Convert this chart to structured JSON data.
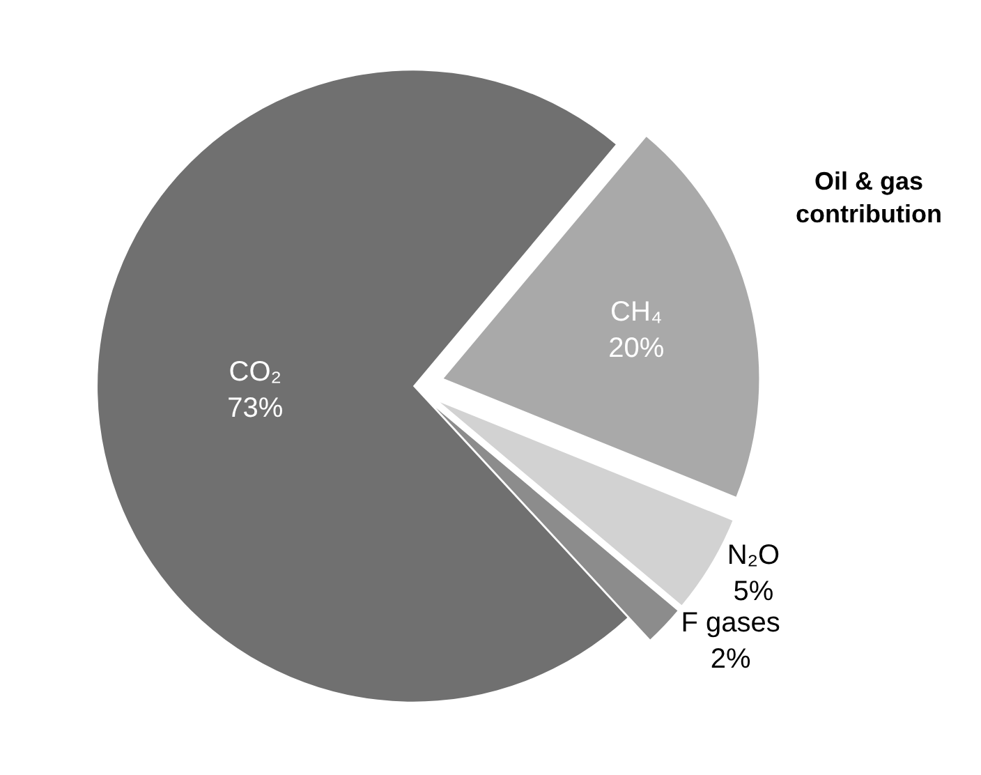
{
  "chart_data": {
    "type": "pie",
    "categories": [
      "CH₄",
      "N₂O",
      "F gases",
      "CO₂"
    ],
    "values": [
      20,
      5,
      2,
      73
    ],
    "value_labels": [
      "20%",
      "5%",
      "2%",
      "73%"
    ],
    "colors": [
      "#a9a9a9",
      "#d2d2d2",
      "#8c8c8c",
      "#707070"
    ],
    "annotations": [
      "Oil & gas contribution"
    ],
    "legend": false
  }
}
